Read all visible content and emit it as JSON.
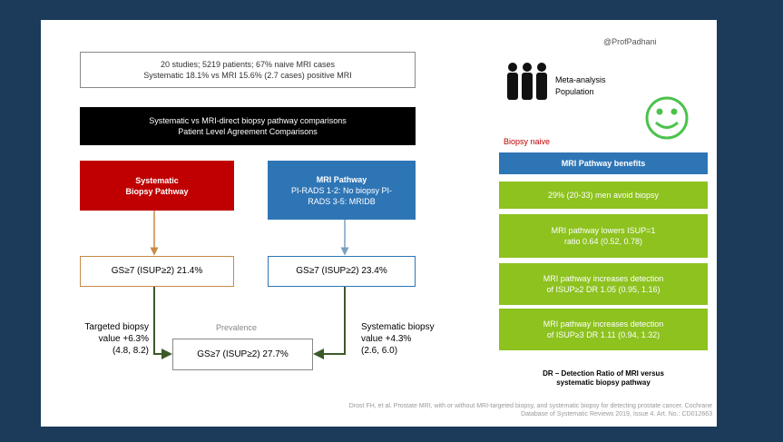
{
  "handle": "@ProfPadhani",
  "summary_box": [
    "20 studies; 5219 patients; 67% naive MRI cases",
    "Systematic 18.1% vs MRI 15.6% (2.7 cases) positive MRI"
  ],
  "comparison_box": [
    "Systematic vs MRI-direct biopsy pathway comparisons",
    "Patient Level Agreement Comparisons"
  ],
  "systematic_pathway": [
    "Systematic",
    "Biopsy Pathway"
  ],
  "mri_pathway": [
    "MRI Pathway",
    "PI-RADS 1-2: No biopsy PI-",
    "RADS 3-5: MRIDB"
  ],
  "systematic_result": "GS≥7 (ISUP≥2) 21.4%",
  "mri_result": "GS≥7 (ISUP≥2) 23.4%",
  "prevalence_label": "Prevalence",
  "prevalence_result": "GS≥7 (ISUP≥2) 27.7%",
  "targeted_value": [
    "Targeted biopsy",
    "value +6.3%",
    "(4.8, 8.2)"
  ],
  "systematic_value": [
    "Systematic biopsy",
    "value +4.3%",
    "(2.6, 6.0)"
  ],
  "population": [
    "Meta-analysis",
    "Population"
  ],
  "biopsy_naive": "Biopsy naive",
  "benefits_title": "MRI Pathway benefits",
  "benefits": [
    [
      "29% (20-33) men avoid biopsy"
    ],
    [
      "MRI pathway lowers ISUP=1",
      "ratio 0.64 (0.52, 0.78)"
    ],
    [
      "MRI pathway increases detection",
      "of ISUP≥2 DR 1.05 (0.95, 1.16)"
    ],
    [
      "MRI pathway increases detection",
      "of ISUP≥3 DR 1.11 (0.94, 1.32)"
    ]
  ],
  "dr_note": [
    "DR – Detection Ratio of MRI versus",
    "systematic biopsy pathway"
  ],
  "citation": [
    "Drost FH, et al. Prostate MRI, with or without MRI-targeted biopsy, and systematic biopsy for detecting prostate cancer. Cochrane",
    "Database of Systematic Reviews 2019, Issue 4. Art. No.: CD012663"
  ]
}
